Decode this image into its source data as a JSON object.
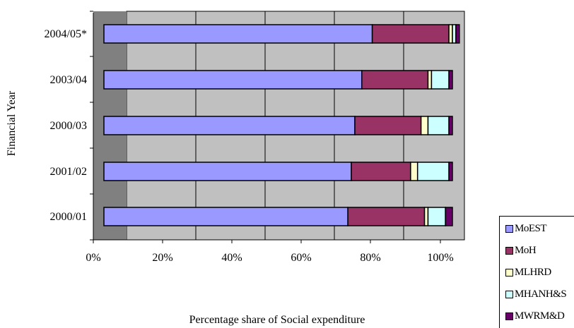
{
  "chart_data": {
    "type": "bar",
    "orientation": "horizontal",
    "stacked": true,
    "xlabel": "Percentage share of Social expenditure",
    "ylabel": "Financial Year",
    "x_ticks": [
      "0%",
      "20%",
      "40%",
      "60%",
      "80%",
      "100%"
    ],
    "xlim": [
      0,
      100
    ],
    "grid": true,
    "legend_position": "bottom-right",
    "categories": [
      "2000/01",
      "2001/02",
      "2000/03",
      "2003/04",
      "2004/05*"
    ],
    "series": [
      {
        "name": "MoEST",
        "color": "#9999ff",
        "values": [
          70,
          71,
          72,
          74,
          77
        ]
      },
      {
        "name": "MoH",
        "color": "#993366",
        "values": [
          22,
          17,
          19,
          19,
          22
        ]
      },
      {
        "name": "MLHRD",
        "color": "#ffffcc",
        "values": [
          1,
          2,
          2,
          1,
          1
        ]
      },
      {
        "name": "MHANH&S",
        "color": "#ccffff",
        "values": [
          5,
          9,
          6,
          5,
          1
        ]
      },
      {
        "name": "MWRM&D",
        "color": "#660066",
        "values": [
          2,
          1,
          1,
          1,
          1
        ]
      }
    ],
    "colors": {
      "plot_background": "#c0c0c0",
      "wall": "#808080",
      "gridline": "#000000",
      "bar_outline": "#000000"
    }
  }
}
